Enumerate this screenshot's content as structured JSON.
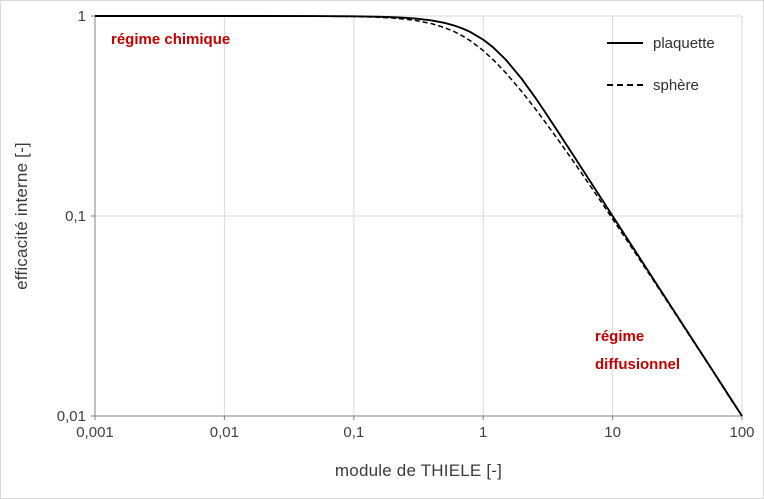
{
  "chart_data": {
    "type": "line",
    "title": "",
    "xlabel": "module de THIELE [-]",
    "ylabel": "efficacité interne [-]",
    "x_scale": "log",
    "y_scale": "log",
    "xlim": [
      0.001,
      100
    ],
    "ylim": [
      0.01,
      1
    ],
    "grid": true,
    "legend_position": "top-right-inside",
    "colors": {
      "grid": "#d9d9d9",
      "axis": "#808080",
      "tick_label": "#404040",
      "annotation": "#c00000",
      "line": "#000000"
    },
    "x_ticks": [
      {
        "v": 0.001,
        "label": "0,001"
      },
      {
        "v": 0.01,
        "label": "0,01"
      },
      {
        "v": 0.1,
        "label": "0,1"
      },
      {
        "v": 1,
        "label": "1"
      },
      {
        "v": 10,
        "label": "10"
      },
      {
        "v": 100,
        "label": "100"
      }
    ],
    "y_ticks": [
      {
        "v": 1,
        "label": "1"
      },
      {
        "v": 0.1,
        "label": "0,1"
      },
      {
        "v": 0.01,
        "label": "0,01"
      }
    ],
    "x": [
      0.001,
      0.002,
      0.005,
      0.01,
      0.02,
      0.05,
      0.1,
      0.15,
      0.2,
      0.25,
      0.3,
      0.4,
      0.5,
      0.6,
      0.7,
      0.8,
      1,
      1.2,
      1.5,
      2,
      2.5,
      3,
      4,
      5,
      6,
      7,
      8,
      10,
      12,
      15,
      20,
      25,
      30,
      40,
      50,
      60,
      70,
      80,
      100
    ],
    "series": [
      {
        "name": "plaquette",
        "style": "solid",
        "color": "#000000",
        "values": [
          1,
          1,
          1,
          1,
          0.9999,
          0.9992,
          0.9967,
          0.9926,
          0.9869,
          0.9797,
          0.971,
          0.9499,
          0.9242,
          0.8951,
          0.8634,
          0.8301,
          0.7616,
          0.6947,
          0.6034,
          0.482,
          0.3946,
          0.3317,
          0.2498,
          0.2,
          0.1667,
          0.1429,
          0.125,
          0.1,
          0.0833,
          0.0667,
          0.05,
          0.04,
          0.0333,
          0.025,
          0.02,
          0.0167,
          0.0143,
          0.0125,
          0.01
        ]
      },
      {
        "name": "sphère",
        "style": "dashed",
        "color": "#000000",
        "values": [
          1,
          1,
          1,
          0.9999,
          0.9998,
          0.9985,
          0.994,
          0.9867,
          0.9768,
          0.9644,
          0.9499,
          0.9155,
          0.8762,
          0.8344,
          0.7918,
          0.7499,
          0.6716,
          0.6031,
          0.5187,
          0.4167,
          0.3467,
          0.2963,
          0.2292,
          0.1867,
          0.1574,
          0.1361,
          0.1198,
          0.0967,
          0.081,
          0.0652,
          0.0492,
          0.0395,
          0.033,
          0.0248,
          0.0199,
          0.0166,
          0.0142,
          0.0124,
          0.01
        ]
      }
    ],
    "annotations": [
      {
        "text": "régime chimique",
        "color": "#c00000",
        "position": "top-left"
      },
      {
        "text": "régime diffusionnel",
        "color": "#c00000",
        "position": "bottom-right"
      }
    ]
  }
}
